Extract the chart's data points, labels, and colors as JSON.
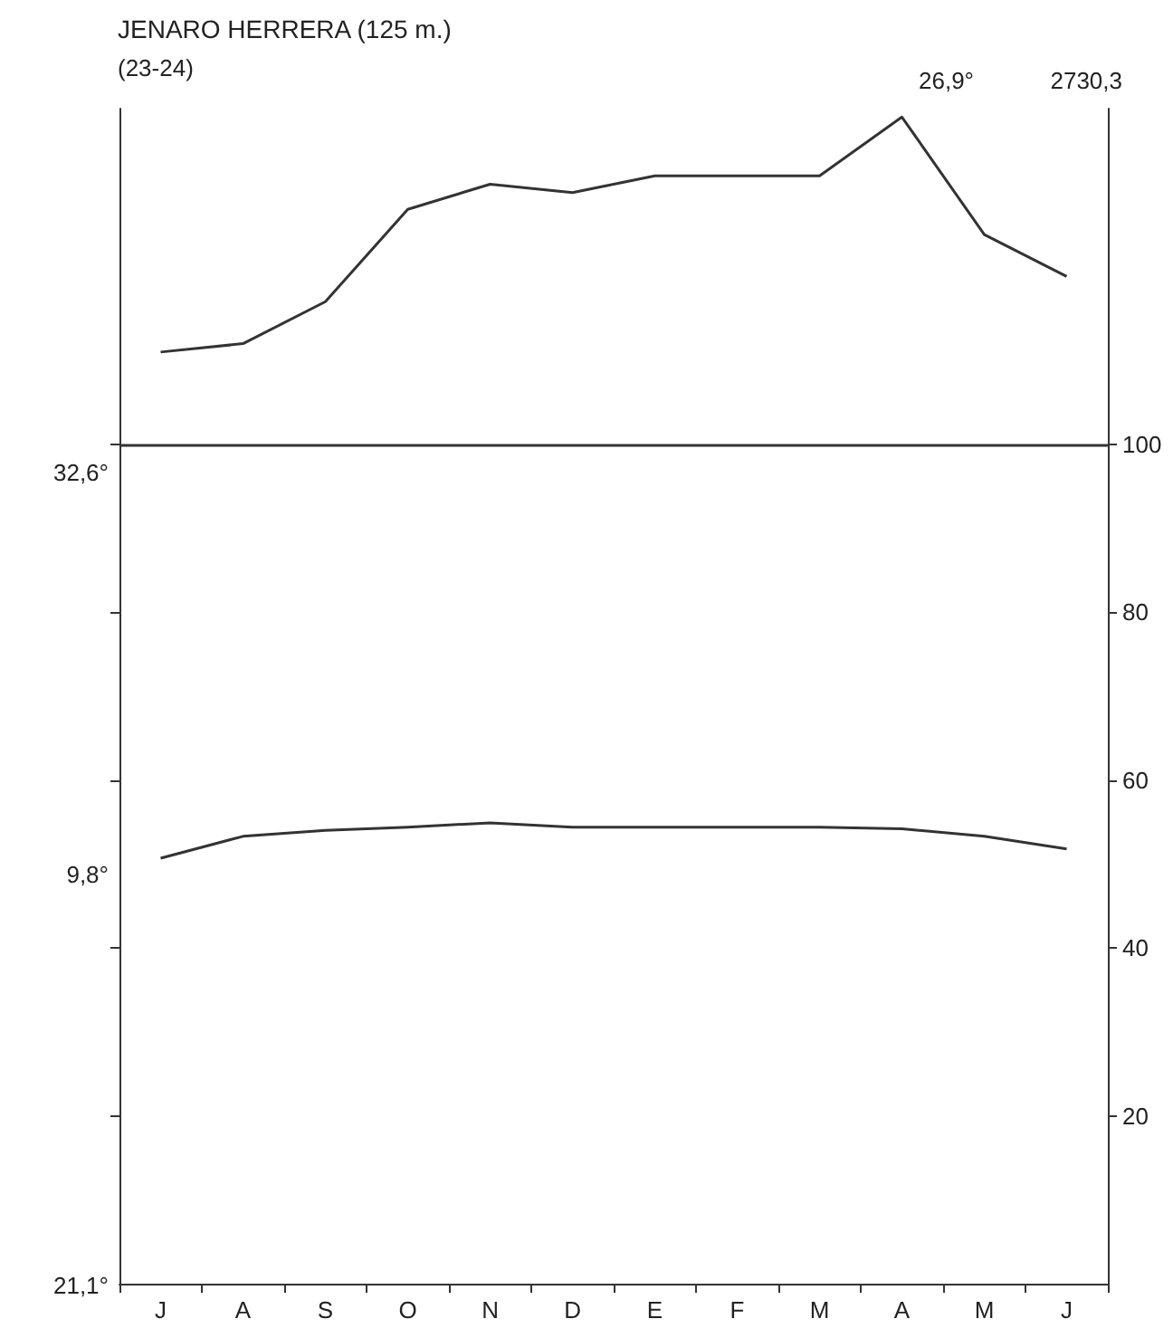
{
  "chart_data": {
    "type": "line",
    "title": "JENARO HERRERA (125 m.)",
    "subtitle": "(23-24)",
    "categories": [
      "J",
      "A",
      "S",
      "O",
      "N",
      "D",
      "E",
      "F",
      "M",
      "A",
      "M",
      "J"
    ],
    "series": [
      {
        "color": "#333333",
        "values": [
          111,
          112,
          117,
          128,
          131,
          130,
          132,
          132,
          132,
          139,
          125,
          120
        ]
      },
      {
        "color": "#333333",
        "values": [
          50.7,
          53.3,
          54,
          54.4,
          54.9,
          54.4,
          54.4,
          54.4,
          54.4,
          54.2,
          53.3,
          51.8
        ]
      }
    ],
    "ylim": [
      0,
      140
    ],
    "yticks": [
      20,
      40,
      60,
      80,
      100
    ],
    "ref_lines": [
      {
        "axis": "y",
        "value": 100,
        "label": null
      }
    ],
    "annotations": [
      "26,9°",
      "2730,3",
      "32,6°",
      "9,8°",
      "21,1°"
    ],
    "grid": false,
    "marker": "none",
    "line_style": "solid"
  }
}
